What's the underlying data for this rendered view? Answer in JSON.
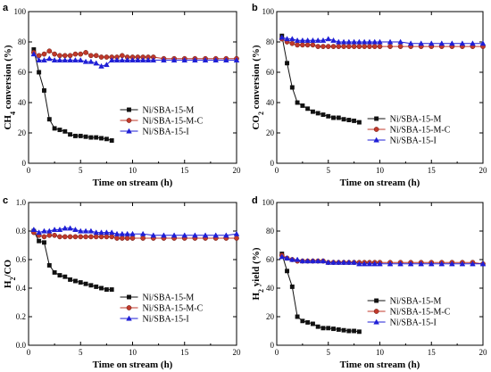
{
  "colors": {
    "series_M": "#111111",
    "series_M_C": "#c0392b",
    "series_I": "#1f1fd6",
    "axis": "#000000"
  },
  "chart_data": [
    {
      "panel": "a",
      "type": "line",
      "xlabel": "Time on stream (h)",
      "ylabel": "CH4 conversion (%)",
      "ylabel_parts": [
        "CH",
        "4",
        " conversion (%)"
      ],
      "xlim": [
        0,
        20
      ],
      "ylim": [
        0,
        100
      ],
      "xticks": [
        0,
        5,
        10,
        15,
        20
      ],
      "yticks": [
        0,
        20,
        40,
        60,
        80,
        100
      ],
      "legend": "right-middle",
      "series": [
        {
          "name": "Ni/SBA-15-M",
          "marker": "square",
          "x": [
            0.5,
            1.0,
            1.5,
            2.0,
            2.5,
            3.0,
            3.5,
            4.0,
            4.5,
            5.0,
            5.5,
            6.0,
            6.5,
            7.0,
            7.5,
            8.0
          ],
          "y": [
            75,
            60,
            48,
            29,
            23,
            22,
            21,
            19,
            18,
            18,
            17.5,
            17,
            17,
            16.5,
            16,
            15
          ]
        },
        {
          "name": "Ni/SBA-15-M-C",
          "marker": "circle",
          "x": [
            0.5,
            1.0,
            1.5,
            2.0,
            2.5,
            3.0,
            3.5,
            4.0,
            4.5,
            5.0,
            5.5,
            6.0,
            6.5,
            7.0,
            7.5,
            8.0,
            8.5,
            9.0,
            9.5,
            10.0,
            10.5,
            11.0,
            11.5,
            12.0,
            13.0,
            14.0,
            15.0,
            16.0,
            17.0,
            18.0,
            19.0,
            20.0
          ],
          "y": [
            73,
            71,
            72,
            74,
            72,
            71,
            71,
            71,
            72,
            72,
            73,
            71,
            71,
            70,
            70,
            70,
            70,
            71,
            70,
            70,
            70,
            70,
            70,
            70,
            69,
            69,
            69,
            69,
            69,
            69,
            69,
            69
          ]
        },
        {
          "name": "Ni/SBA-15-I",
          "marker": "triangle",
          "x": [
            0.5,
            1.0,
            1.5,
            2.0,
            2.5,
            3.0,
            3.5,
            4.0,
            4.5,
            5.0,
            5.5,
            6.0,
            6.5,
            7.0,
            7.5,
            8.0,
            8.5,
            9.0,
            9.5,
            10.0,
            10.5,
            11.0,
            11.5,
            12.0,
            13.0,
            14.0,
            15.0,
            16.0,
            17.0,
            18.0,
            19.0,
            20.0
          ],
          "y": [
            72,
            68,
            68,
            69,
            68,
            68,
            68,
            68,
            68,
            68,
            67,
            67,
            66,
            64,
            65,
            68,
            68,
            68,
            68,
            68,
            68,
            68,
            68,
            68,
            68,
            68,
            68,
            68,
            68,
            68,
            68,
            68
          ]
        }
      ]
    },
    {
      "panel": "b",
      "type": "line",
      "xlabel": "Time on stream (h)",
      "ylabel": "CO2 conversion (%)",
      "ylabel_parts": [
        "CO",
        "2",
        " conversion (%)"
      ],
      "xlim": [
        0,
        20
      ],
      "ylim": [
        0,
        100
      ],
      "xticks": [
        0,
        5,
        10,
        15,
        20
      ],
      "yticks": [
        0,
        20,
        40,
        60,
        80,
        100
      ],
      "legend": "right-middle",
      "series": [
        {
          "name": "Ni/SBA-15-M",
          "marker": "square",
          "x": [
            0.5,
            1.0,
            1.5,
            2.0,
            2.5,
            3.0,
            3.5,
            4.0,
            4.5,
            5.0,
            5.5,
            6.0,
            6.5,
            7.0,
            7.5,
            8.0
          ],
          "y": [
            84,
            66,
            50,
            40,
            38,
            36,
            34,
            33,
            32,
            31,
            30,
            30,
            29,
            28.5,
            28,
            27
          ]
        },
        {
          "name": "Ni/SBA-15-M-C",
          "marker": "circle",
          "x": [
            0.5,
            1.0,
            1.5,
            2.0,
            2.5,
            3.0,
            3.5,
            4.0,
            4.5,
            5.0,
            5.5,
            6.0,
            6.5,
            7.0,
            7.5,
            8.0,
            8.5,
            9.0,
            9.5,
            10.0,
            11.0,
            12.0,
            13.0,
            14.0,
            15.0,
            16.0,
            17.0,
            18.0,
            19.0,
            20.0
          ],
          "y": [
            82,
            80,
            79,
            78,
            78,
            78,
            78,
            77,
            77,
            77,
            77,
            77,
            77,
            77,
            77,
            77,
            77,
            77,
            77,
            77,
            77,
            77,
            77,
            77,
            77,
            77,
            77,
            77,
            77,
            77
          ]
        },
        {
          "name": "Ni/SBA-15-I",
          "marker": "triangle",
          "x": [
            0.5,
            1.0,
            1.5,
            2.0,
            2.5,
            3.0,
            3.5,
            4.0,
            4.5,
            5.0,
            5.5,
            6.0,
            6.5,
            7.0,
            7.5,
            8.0,
            8.5,
            9.0,
            9.5,
            10.0,
            11.0,
            12.0,
            13.0,
            14.0,
            15.0,
            16.0,
            17.0,
            18.0,
            19.0,
            20.0
          ],
          "y": [
            83,
            82,
            82,
            81,
            81,
            81,
            81,
            81,
            81,
            82,
            81,
            80,
            80,
            80,
            80,
            80,
            80,
            80,
            80,
            80,
            80,
            80,
            79,
            79,
            79,
            79,
            79,
            79,
            79,
            79
          ]
        }
      ]
    },
    {
      "panel": "c",
      "type": "line",
      "xlabel": "Time on stream (h)",
      "ylabel": "H2/CO",
      "ylabel_parts": [
        "H",
        "2",
        "/CO"
      ],
      "xlim": [
        0,
        20
      ],
      "ylim": [
        0.0,
        1.0
      ],
      "xticks": [
        0,
        5,
        10,
        15,
        20
      ],
      "yticks": [
        0.0,
        0.2,
        0.4,
        0.6,
        0.8,
        1.0
      ],
      "legend": "right-bottom",
      "series": [
        {
          "name": "Ni/SBA-15-M",
          "marker": "square",
          "x": [
            0.5,
            1.0,
            1.5,
            2.0,
            2.5,
            3.0,
            3.5,
            4.0,
            4.5,
            5.0,
            5.5,
            6.0,
            6.5,
            7.0,
            7.5,
            8.0
          ],
          "y": [
            0.8,
            0.73,
            0.72,
            0.56,
            0.51,
            0.49,
            0.48,
            0.46,
            0.45,
            0.44,
            0.43,
            0.42,
            0.41,
            0.4,
            0.39,
            0.39
          ]
        },
        {
          "name": "Ni/SBA-15-M-C",
          "marker": "circle",
          "x": [
            0.5,
            1.0,
            1.5,
            2.0,
            2.5,
            3.0,
            3.5,
            4.0,
            4.5,
            5.0,
            5.5,
            6.0,
            6.5,
            7.0,
            7.5,
            8.0,
            8.5,
            9.0,
            9.5,
            10.0,
            11.0,
            12.0,
            13.0,
            14.0,
            15.0,
            16.0,
            17.0,
            18.0,
            19.0,
            20.0
          ],
          "y": [
            0.79,
            0.77,
            0.76,
            0.77,
            0.77,
            0.76,
            0.76,
            0.76,
            0.76,
            0.76,
            0.76,
            0.76,
            0.76,
            0.76,
            0.76,
            0.76,
            0.75,
            0.75,
            0.75,
            0.75,
            0.75,
            0.75,
            0.75,
            0.75,
            0.75,
            0.75,
            0.75,
            0.75,
            0.75,
            0.75
          ]
        },
        {
          "name": "Ni/SBA-15-I",
          "marker": "triangle",
          "x": [
            0.5,
            1.0,
            1.5,
            2.0,
            2.5,
            3.0,
            3.5,
            4.0,
            4.5,
            5.0,
            5.5,
            6.0,
            6.5,
            7.0,
            7.5,
            8.0,
            8.5,
            9.0,
            9.5,
            10.0,
            11.0,
            12.0,
            13.0,
            14.0,
            15.0,
            16.0,
            17.0,
            18.0,
            19.0,
            20.0
          ],
          "y": [
            0.81,
            0.79,
            0.8,
            0.8,
            0.81,
            0.81,
            0.82,
            0.82,
            0.81,
            0.8,
            0.8,
            0.8,
            0.79,
            0.79,
            0.79,
            0.79,
            0.78,
            0.78,
            0.78,
            0.78,
            0.78,
            0.77,
            0.77,
            0.77,
            0.77,
            0.77,
            0.77,
            0.77,
            0.77,
            0.78
          ]
        }
      ]
    },
    {
      "panel": "d",
      "type": "line",
      "xlabel": "Time on stream (h)",
      "ylabel": "H2 yield (%)",
      "ylabel_parts": [
        "H",
        "2",
        " yield (%)"
      ],
      "xlim": [
        0,
        20
      ],
      "ylim": [
        0,
        100
      ],
      "xticks": [
        0,
        5,
        10,
        15,
        20
      ],
      "yticks": [
        0,
        20,
        40,
        60,
        80,
        100
      ],
      "legend": "right-bottom",
      "series": [
        {
          "name": "Ni/SBA-15-M",
          "marker": "square",
          "x": [
            0.5,
            1.0,
            1.5,
            2.0,
            2.5,
            3.0,
            3.5,
            4.0,
            4.5,
            5.0,
            5.5,
            6.0,
            6.5,
            7.0,
            7.5,
            8.0
          ],
          "y": [
            64,
            52,
            41,
            20,
            17,
            16,
            15,
            13,
            12,
            12,
            11.5,
            11,
            10.5,
            10,
            10,
            9.5
          ]
        },
        {
          "name": "Ni/SBA-15-M-C",
          "marker": "circle",
          "x": [
            0.5,
            1.0,
            1.5,
            2.0,
            2.5,
            3.0,
            3.5,
            4.0,
            4.5,
            5.0,
            5.5,
            6.0,
            6.5,
            7.0,
            7.5,
            8.0,
            8.5,
            9.0,
            9.5,
            10.0,
            11.0,
            12.0,
            13.0,
            14.0,
            15.0,
            16.0,
            17.0,
            18.0,
            19.0,
            20.0
          ],
          "y": [
            63,
            61,
            60,
            59,
            59,
            59,
            59,
            59,
            59,
            58,
            58,
            58,
            58,
            58,
            58,
            58,
            58,
            58,
            58,
            58,
            58,
            58,
            58,
            58,
            58,
            58,
            58,
            58,
            58,
            57
          ]
        },
        {
          "name": "Ni/SBA-15-I",
          "marker": "triangle",
          "x": [
            0.5,
            1.0,
            1.5,
            2.0,
            2.5,
            3.0,
            3.5,
            4.0,
            4.5,
            5.0,
            5.5,
            6.0,
            6.5,
            7.0,
            7.5,
            8.0,
            8.5,
            9.0,
            9.5,
            10.0,
            11.0,
            12.0,
            13.0,
            14.0,
            15.0,
            16.0,
            17.0,
            18.0,
            19.0,
            20.0
          ],
          "y": [
            62,
            61,
            60,
            60,
            59,
            59,
            59,
            59,
            59,
            58,
            58,
            58,
            58,
            58,
            58,
            57,
            57,
            57,
            57,
            57,
            57,
            57,
            57,
            57,
            57,
            57,
            57,
            57,
            57,
            57
          ]
        }
      ]
    }
  ]
}
